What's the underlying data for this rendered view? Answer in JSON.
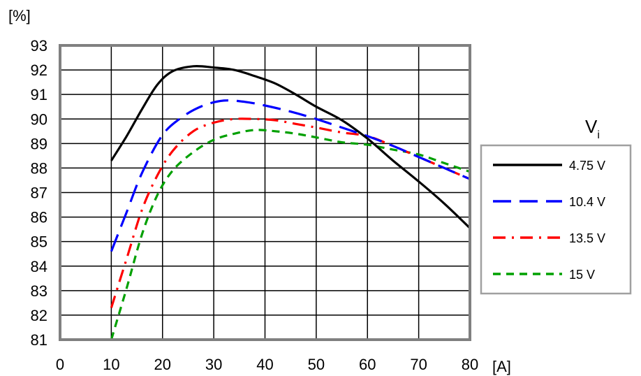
{
  "chart_data": {
    "type": "line",
    "title": "",
    "ylabel": "[%]",
    "xlabel": "[A]",
    "xlim": [
      0,
      80
    ],
    "ylim": [
      81,
      93
    ],
    "x_ticks": [
      "0",
      "10",
      "20",
      "30",
      "40",
      "50",
      "60",
      "70",
      "80"
    ],
    "y_ticks": [
      "81",
      "82",
      "83",
      "84",
      "85",
      "86",
      "87",
      "88",
      "89",
      "90",
      "91",
      "92",
      "93"
    ],
    "grid": true,
    "legend_title": "Vi",
    "legend_position": "right",
    "series": [
      {
        "name": "4.75 V",
        "color": "#000000",
        "dash": "solid",
        "points": [
          [
            10,
            88.3
          ],
          [
            13,
            89.3
          ],
          [
            16,
            90.4
          ],
          [
            19,
            91.4
          ],
          [
            22,
            91.95
          ],
          [
            26,
            92.15
          ],
          [
            30,
            92.1
          ],
          [
            34,
            92.0
          ],
          [
            38,
            91.75
          ],
          [
            42,
            91.45
          ],
          [
            46,
            91.0
          ],
          [
            50,
            90.5
          ],
          [
            55,
            89.95
          ],
          [
            60,
            89.2
          ],
          [
            65,
            88.3
          ],
          [
            70,
            87.45
          ],
          [
            75,
            86.55
          ],
          [
            80,
            85.55
          ]
        ]
      },
      {
        "name": "10.4 V",
        "color": "#0000ff",
        "dash": "long-dash",
        "points": [
          [
            10,
            84.6
          ],
          [
            13,
            86.2
          ],
          [
            16,
            87.8
          ],
          [
            20,
            89.35
          ],
          [
            24,
            90.1
          ],
          [
            28,
            90.55
          ],
          [
            32,
            90.75
          ],
          [
            36,
            90.7
          ],
          [
            40,
            90.55
          ],
          [
            45,
            90.3
          ],
          [
            50,
            90.0
          ],
          [
            55,
            89.65
          ],
          [
            60,
            89.3
          ],
          [
            65,
            88.9
          ],
          [
            70,
            88.45
          ],
          [
            75,
            88.0
          ],
          [
            80,
            87.55
          ]
        ]
      },
      {
        "name": "13.5 V",
        "color": "#ff0000",
        "dash": "dash-dot",
        "points": [
          [
            10,
            82.3
          ],
          [
            13,
            84.3
          ],
          [
            16,
            86.3
          ],
          [
            19,
            87.7
          ],
          [
            22,
            88.7
          ],
          [
            26,
            89.5
          ],
          [
            30,
            89.85
          ],
          [
            34,
            90.0
          ],
          [
            38,
            90.0
          ],
          [
            42,
            89.95
          ],
          [
            46,
            89.8
          ],
          [
            50,
            89.65
          ],
          [
            55,
            89.45
          ],
          [
            60,
            89.3
          ],
          [
            65,
            88.9
          ],
          [
            70,
            88.45
          ],
          [
            75,
            88.0
          ],
          [
            80,
            87.55
          ]
        ]
      },
      {
        "name": "15 V",
        "color": "#00a000",
        "dash": "short-dash",
        "points": [
          [
            10,
            81.0
          ],
          [
            13,
            83.1
          ],
          [
            16,
            85.3
          ],
          [
            19,
            86.9
          ],
          [
            22,
            87.9
          ],
          [
            26,
            88.65
          ],
          [
            30,
            89.15
          ],
          [
            34,
            89.4
          ],
          [
            38,
            89.55
          ],
          [
            42,
            89.5
          ],
          [
            46,
            89.4
          ],
          [
            50,
            89.25
          ],
          [
            55,
            89.05
          ],
          [
            60,
            88.95
          ],
          [
            65,
            88.75
          ],
          [
            70,
            88.55
          ],
          [
            75,
            88.2
          ],
          [
            80,
            87.85
          ]
        ]
      }
    ]
  }
}
